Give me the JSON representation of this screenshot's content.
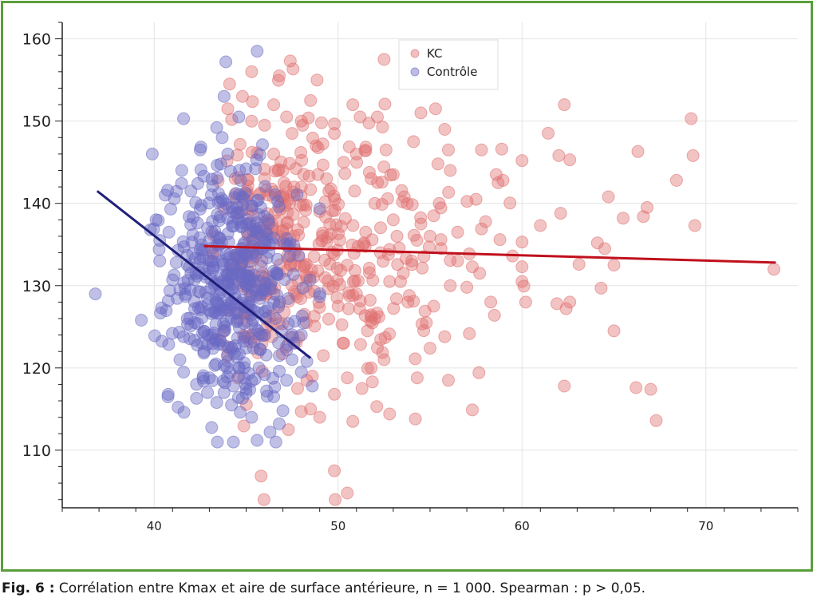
{
  "chart_data": {
    "type": "scatter",
    "xlim": [
      35,
      75
    ],
    "ylim": [
      103,
      162
    ],
    "x_ticks": [
      40,
      50,
      60,
      70
    ],
    "y_ticks": [
      110,
      120,
      130,
      140,
      150,
      160
    ],
    "grid": true,
    "legend_position": "top-center",
    "series": [
      {
        "name": "KC",
        "color": "#e07070",
        "point_count": 500,
        "x_range": [
          42,
          74
        ],
        "y_range": [
          104,
          158
        ],
        "regression": {
          "x": [
            42.7,
            73.8
          ],
          "y": [
            134.8,
            132.8
          ],
          "color": "#c0101c"
        },
        "points": [
          [
            44.1,
            154.5
          ],
          [
            45.3,
            156.0
          ],
          [
            47.4,
            157.3
          ],
          [
            52.5,
            157.5
          ],
          [
            46.5,
            152.0
          ],
          [
            48.5,
            152.5
          ],
          [
            50.8,
            152.0
          ],
          [
            51.2,
            150.5
          ],
          [
            54.5,
            151.0
          ],
          [
            55.3,
            151.5
          ],
          [
            62.3,
            152.0
          ],
          [
            69.2,
            150.3
          ],
          [
            48.0,
            150.0
          ],
          [
            49.8,
            148.5
          ],
          [
            55.8,
            149.0
          ],
          [
            54.1,
            147.5
          ],
          [
            56.0,
            146.5
          ],
          [
            57.8,
            146.5
          ],
          [
            58.9,
            146.6
          ],
          [
            62.0,
            145.8
          ],
          [
            62.6,
            145.3
          ],
          [
            66.3,
            146.3
          ],
          [
            69.3,
            145.8
          ],
          [
            60.0,
            145.2
          ],
          [
            47.0,
            144.0
          ],
          [
            48.9,
            143.5
          ],
          [
            51.8,
            143.0
          ],
          [
            53.0,
            143.5
          ],
          [
            58.6,
            143.5
          ],
          [
            58.7,
            142.5
          ],
          [
            68.4,
            142.8
          ],
          [
            49.5,
            141.5
          ],
          [
            53.6,
            140.8
          ],
          [
            64.7,
            140.8
          ],
          [
            57.5,
            140.5
          ],
          [
            55.5,
            140.0
          ],
          [
            66.8,
            139.5
          ],
          [
            62.1,
            138.8
          ],
          [
            65.5,
            138.2
          ],
          [
            66.6,
            138.4
          ],
          [
            61.0,
            137.3
          ],
          [
            69.4,
            137.3
          ],
          [
            57.8,
            136.9
          ],
          [
            56.5,
            136.5
          ],
          [
            58.8,
            135.6
          ],
          [
            60.0,
            135.3
          ],
          [
            64.1,
            135.2
          ],
          [
            63.1,
            132.6
          ],
          [
            64.5,
            134.5
          ],
          [
            65.0,
            132.5
          ],
          [
            57.3,
            132.3
          ],
          [
            60.0,
            132.3
          ],
          [
            57.7,
            131.5
          ],
          [
            60.0,
            130.5
          ],
          [
            64.3,
            129.7
          ],
          [
            58.3,
            128.0
          ],
          [
            60.2,
            128.0
          ],
          [
            61.9,
            127.8
          ],
          [
            62.4,
            127.2
          ],
          [
            62.6,
            128.0
          ],
          [
            58.5,
            126.4
          ],
          [
            56.1,
            130.0
          ],
          [
            57.0,
            129.8
          ],
          [
            65.0,
            124.5
          ],
          [
            55.0,
            122.4
          ],
          [
            55.8,
            123.8
          ],
          [
            56.0,
            118.5
          ],
          [
            54.3,
            118.8
          ],
          [
            62.3,
            117.8
          ],
          [
            66.2,
            117.6
          ],
          [
            67.0,
            117.4
          ],
          [
            67.3,
            113.6
          ],
          [
            57.3,
            114.9
          ],
          [
            54.2,
            113.8
          ],
          [
            52.1,
            115.3
          ],
          [
            52.8,
            114.4
          ],
          [
            51.3,
            117.5
          ],
          [
            50.5,
            118.8
          ],
          [
            49.8,
            116.8
          ],
          [
            50.8,
            113.5
          ],
          [
            48.5,
            115.0
          ],
          [
            49.8,
            107.5
          ],
          [
            50.5,
            104.8
          ],
          [
            73.7,
            132.0
          ],
          [
            53.5,
            140.2
          ],
          [
            53.0,
            138.0
          ],
          [
            51.5,
            136.5
          ],
          [
            52.3,
            134.0
          ],
          [
            54.0,
            133.0
          ],
          [
            50.5,
            132.5
          ],
          [
            52.8,
            130.5
          ],
          [
            51.0,
            129.0
          ],
          [
            53.8,
            128.0
          ],
          [
            50.0,
            127.5
          ],
          [
            52.0,
            126.0
          ],
          [
            54.8,
            125.5
          ],
          [
            51.6,
            124.5
          ],
          [
            50.3,
            123.0
          ],
          [
            52.5,
            121.0
          ],
          [
            49.2,
            121.5
          ],
          [
            51.8,
            120.0
          ],
          [
            48.6,
            119.0
          ],
          [
            47.3,
            112.5
          ],
          [
            49.0,
            114.0
          ],
          [
            47.8,
            117.5
          ],
          [
            48.3,
            118.5
          ],
          [
            55.2,
            127.5
          ],
          [
            56.5,
            133.0
          ],
          [
            55.0,
            136.0
          ],
          [
            54.5,
            137.5
          ],
          [
            55.6,
            134.5
          ],
          [
            53.2,
            136.0
          ],
          [
            52.0,
            140.0
          ],
          [
            50.9,
            141.5
          ],
          [
            49.0,
            139.0
          ],
          [
            48.0,
            142.0
          ],
          [
            47.0,
            141.0
          ],
          [
            46.0,
            143.0
          ],
          [
            46.5,
            146.0
          ],
          [
            47.5,
            148.5
          ],
          [
            46.0,
            149.5
          ],
          [
            48.8,
            147.0
          ],
          [
            50.3,
            145.0
          ],
          [
            49.1,
            149.8
          ],
          [
            51.0,
            146.0
          ],
          [
            47.2,
            150.5
          ],
          [
            45.3,
            150.0
          ],
          [
            44.8,
            153.0
          ],
          [
            46.8,
            155.5
          ],
          [
            44.0,
            151.5
          ],
          [
            56.1,
            144.0
          ],
          [
            55.2,
            138.5
          ]
        ]
      },
      {
        "name": "Contrôle",
        "color": "#6a6ac4",
        "point_count": 500,
        "x_range": [
          36.5,
          49
        ],
        "y_range": [
          111,
          158.5
        ],
        "regression": {
          "x": [
            36.9,
            48.5
          ],
          "y": [
            141.5,
            121.2
          ],
          "color": "#20207a"
        },
        "points": [
          [
            45.6,
            158.5
          ],
          [
            43.9,
            157.2
          ],
          [
            43.8,
            153.0
          ],
          [
            44.6,
            150.5
          ],
          [
            41.6,
            150.3
          ],
          [
            43.4,
            149.2
          ],
          [
            43.7,
            148.0
          ],
          [
            39.9,
            146.0
          ],
          [
            42.5,
            146.5
          ],
          [
            44.0,
            146.0
          ],
          [
            41.5,
            144.0
          ],
          [
            42.7,
            143.3
          ],
          [
            45.0,
            144.2
          ],
          [
            44.7,
            142.8
          ],
          [
            43.5,
            141.2
          ],
          [
            42.0,
            141.5
          ],
          [
            40.6,
            141.0
          ],
          [
            40.9,
            139.3
          ],
          [
            42.5,
            139.3
          ],
          [
            40.1,
            138.0
          ],
          [
            40.8,
            136.5
          ],
          [
            40.3,
            135.5
          ],
          [
            39.8,
            136.8
          ],
          [
            41.3,
            134.3
          ],
          [
            40.3,
            133.0
          ],
          [
            36.8,
            129.0
          ],
          [
            39.3,
            125.8
          ],
          [
            40.4,
            127.3
          ],
          [
            41.0,
            130.7
          ],
          [
            41.7,
            128.7
          ],
          [
            41.8,
            126.0
          ],
          [
            41.6,
            123.8
          ],
          [
            41.4,
            121.0
          ],
          [
            41.6,
            119.5
          ],
          [
            42.3,
            118.0
          ],
          [
            42.3,
            116.3
          ],
          [
            42.9,
            117.0
          ],
          [
            43.8,
            117.0
          ],
          [
            44.2,
            115.5
          ],
          [
            45.3,
            114.0
          ],
          [
            45.6,
            111.2
          ],
          [
            46.3,
            112.2
          ],
          [
            46.8,
            113.2
          ],
          [
            47.0,
            114.8
          ],
          [
            46.5,
            116.5
          ],
          [
            47.2,
            118.5
          ],
          [
            48.0,
            119.5
          ],
          [
            48.6,
            117.8
          ],
          [
            47.6,
            123.0
          ],
          [
            46.8,
            121.5
          ],
          [
            48.0,
            124.0
          ],
          [
            45.5,
            124.8
          ],
          [
            46.2,
            127.3
          ],
          [
            45.3,
            129.2
          ],
          [
            46.6,
            131.5
          ],
          [
            45.5,
            133.6
          ],
          [
            46.5,
            135.8
          ],
          [
            45.0,
            137.5
          ],
          [
            46.2,
            138.0
          ],
          [
            44.5,
            139.5
          ],
          [
            44.0,
            136.3
          ],
          [
            43.0,
            135.5
          ],
          [
            42.5,
            134.4
          ],
          [
            43.7,
            133.0
          ],
          [
            44.6,
            131.5
          ],
          [
            43.3,
            130.3
          ],
          [
            42.8,
            129.2
          ],
          [
            44.2,
            128.0
          ],
          [
            43.3,
            126.8
          ],
          [
            42.2,
            125.5
          ],
          [
            44.5,
            125.6
          ],
          [
            43.8,
            124.5
          ],
          [
            42.6,
            123.0
          ],
          [
            44.0,
            121.6
          ],
          [
            43.3,
            120.3
          ],
          [
            44.6,
            119.0
          ],
          [
            43.0,
            118.8
          ],
          [
            45.0,
            117.5
          ],
          [
            45.7,
            120.0
          ],
          [
            45.4,
            122.4
          ],
          [
            46.0,
            119.2
          ],
          [
            44.8,
            116.3
          ],
          [
            42.9,
            128.5
          ],
          [
            45.1,
            131.2
          ],
          [
            44.1,
            133.8
          ],
          [
            45.9,
            134.5
          ],
          [
            44.9,
            135.2
          ],
          [
            43.6,
            138.4
          ],
          [
            42.9,
            137.0
          ],
          [
            41.9,
            138.4
          ],
          [
            42.1,
            136.2
          ],
          [
            41.2,
            132.8
          ],
          [
            42.0,
            131.5
          ],
          [
            43.2,
            131.9
          ],
          [
            43.6,
            127.4
          ],
          [
            44.9,
            127.4
          ],
          [
            45.8,
            128.9
          ],
          [
            46.6,
            126.0
          ],
          [
            47.3,
            125.4
          ],
          [
            46.0,
            124.0
          ],
          [
            47.5,
            121.0
          ],
          [
            46.8,
            119.6
          ],
          [
            48.3,
            120.8
          ],
          [
            45.3,
            118.4
          ],
          [
            44.3,
            117.8
          ],
          [
            43.4,
            115.8
          ],
          [
            44.4,
            122.7
          ],
          [
            44.9,
            120.6
          ],
          [
            45.6,
            136.5
          ],
          [
            45.8,
            139.5
          ],
          [
            44.8,
            140.8
          ],
          [
            43.9,
            139.9
          ],
          [
            43.3,
            136.6
          ],
          [
            46.7,
            133.2
          ],
          [
            47.2,
            135.7
          ],
          [
            41.8,
            133.7
          ],
          [
            41.4,
            129.5
          ],
          [
            42.2,
            127.2
          ],
          [
            42.7,
            121.8
          ],
          [
            43.6,
            123.3
          ]
        ]
      }
    ]
  },
  "caption": {
    "label": "Fig. 6 :",
    "text": " Corrélation entre Kmax et aire de surface antérieure, n = 1 000. Spearman : p > 0,05."
  }
}
